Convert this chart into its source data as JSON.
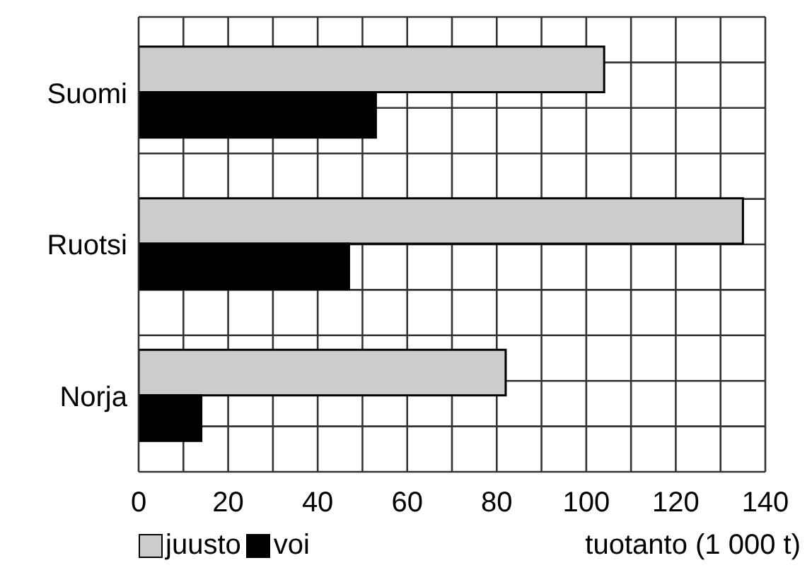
{
  "chart_data": {
    "type": "bar",
    "orientation": "horizontal",
    "categories": [
      "Suomi",
      "Ruotsi",
      "Norja"
    ],
    "series": [
      {
        "name": "juusto",
        "color": "#cccccc",
        "values": [
          104,
          135,
          82
        ]
      },
      {
        "name": "voi",
        "color": "#000000",
        "values": [
          53,
          47,
          14
        ]
      }
    ],
    "xlabel": "tuotanto (1 000 t)",
    "xlim": [
      0,
      140
    ],
    "xticks": [
      0,
      {
        "value": 10,
        "label": null
      },
      20,
      {
        "value": 30,
        "label": null
      },
      40,
      {
        "value": 50,
        "label": null
      },
      60,
      {
        "value": 70,
        "label": null
      },
      80,
      {
        "value": 90,
        "label": null
      },
      100,
      {
        "value": 110,
        "label": null
      },
      120,
      {
        "value": 130,
        "label": null
      },
      140
    ],
    "grid": true,
    "legend": "bottom"
  }
}
